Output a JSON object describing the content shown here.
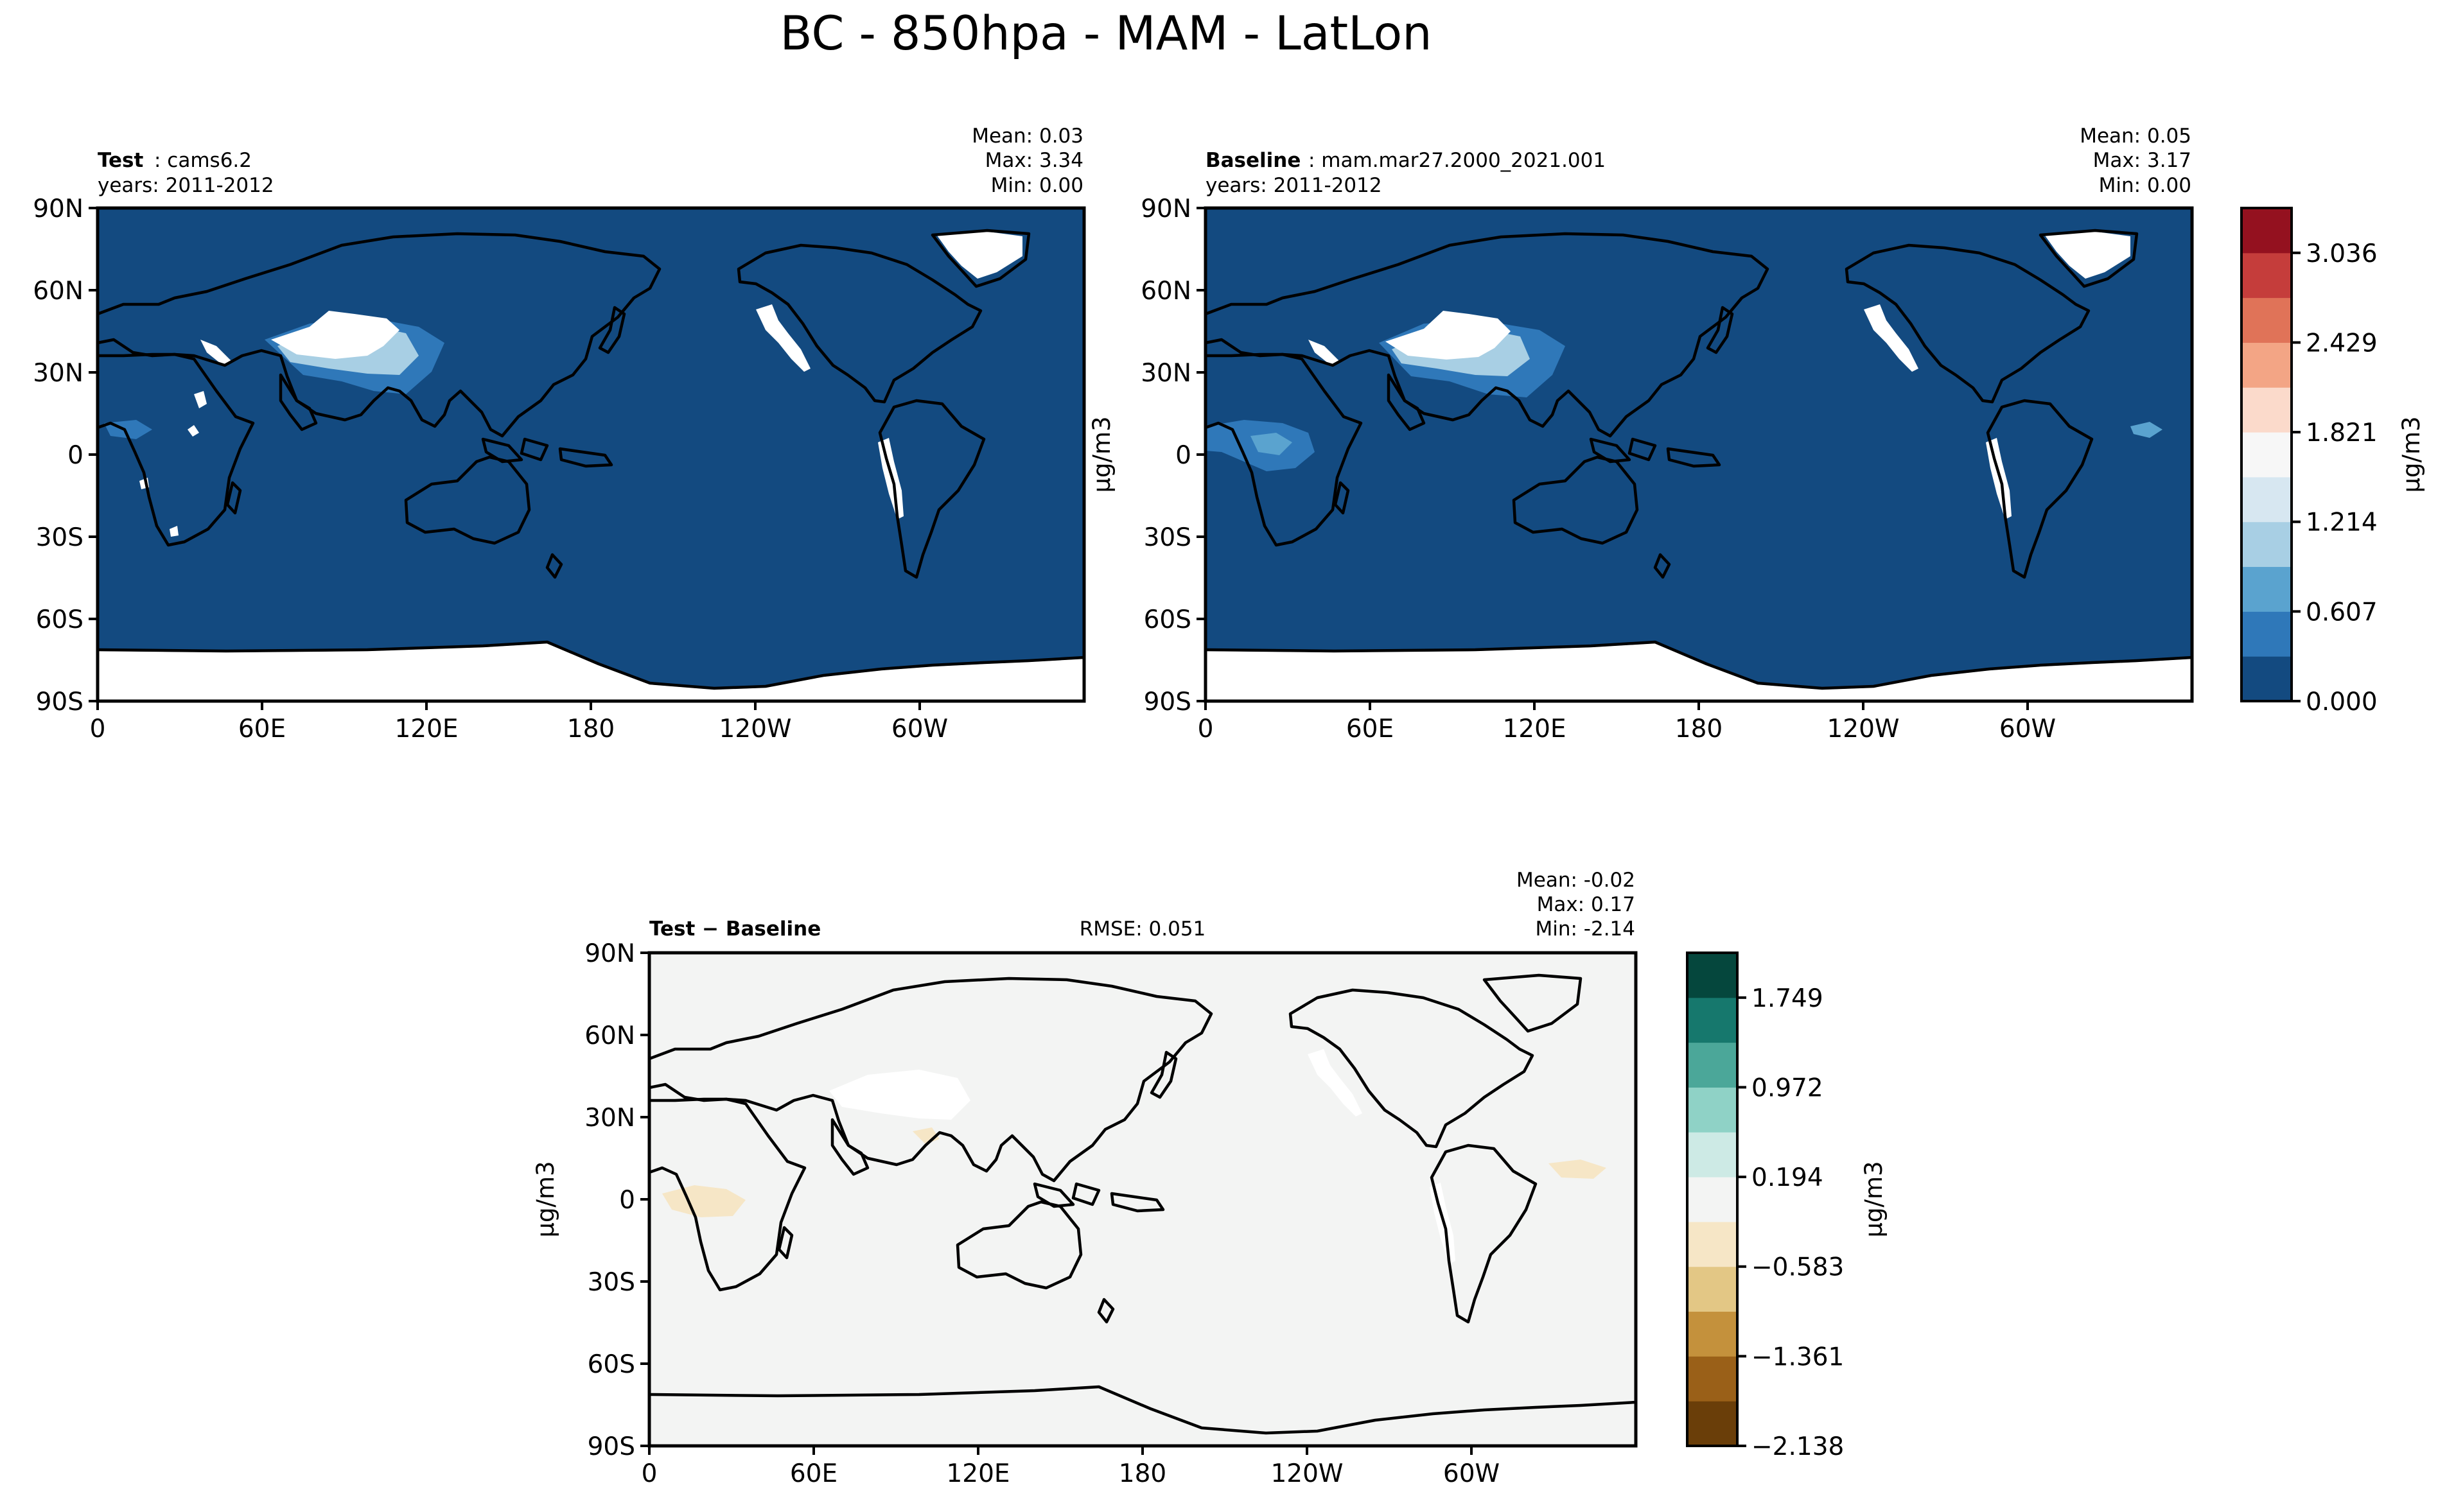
{
  "figure_title": "BC - 850hpa - MAM - LatLon",
  "units": "μg/m3",
  "lat_ticks": [
    "90N",
    "60N",
    "30N",
    "0",
    "30S",
    "60S",
    "90S"
  ],
  "lon_ticks": [
    "0",
    "60E",
    "120E",
    "180",
    "120W",
    "60W"
  ],
  "colors": {
    "test_base": "#134a80",
    "test_mid": "#2f78b9",
    "test_light": "#a8cfe4",
    "land_blank": "#ffffff",
    "diff_base": "#f3f4f3",
    "diff_tan": "#f6e6c6"
  },
  "panels": {
    "test": {
      "label_bold": "Test",
      "label_rest": ": cams6.2",
      "years": "years: 2011-2012",
      "stats": {
        "mean": "Mean:  0.03",
        "max": "Max:  3.34",
        "min": "Min:  0.00"
      }
    },
    "baseline": {
      "label_bold": "Baseline",
      "label_rest": ": mam.mar27.2000_2021.001",
      "years": "years: 2011-2012",
      "stats": {
        "mean": "Mean:  0.05",
        "max": "Max:  3.17",
        "min": "Min:  0.00"
      }
    },
    "diff": {
      "label_bold": "Test − Baseline",
      "rmse": "RMSE: 0.051",
      "stats": {
        "mean": "Mean: -0.02",
        "max": "Max:  0.17",
        "min": "Min: -2.14"
      }
    }
  },
  "colorbar_top": {
    "tick_labels": [
      "0.000",
      "0.607",
      "1.214",
      "1.821",
      "2.429",
      "3.036"
    ],
    "colors": [
      "#134a80",
      "#2f78b9",
      "#5aa3cf",
      "#a8cfe4",
      "#d7e7f1",
      "#f7f7f7",
      "#fbdacb",
      "#f3a585",
      "#e07358",
      "#c53d3b",
      "#94111f"
    ]
  },
  "colorbar_bottom": {
    "tick_labels": [
      "−2.138",
      "−1.361",
      "−0.583",
      "0.194",
      "0.972",
      "1.749"
    ],
    "colors": [
      "#6a3e09",
      "#9a6018",
      "#c4913c",
      "#e3c785",
      "#f6e6c6",
      "#f3f4f3",
      "#cdeae5",
      "#8fd2c6",
      "#4ba799",
      "#16786d",
      "#05473d"
    ]
  },
  "chart_data": [
    {
      "type": "heatmap",
      "title": "Test: cams6.2",
      "subtitle": "years: 2011-2012",
      "projection": "latlon",
      "lon_ticks": [
        "0",
        "60E",
        "120E",
        "180",
        "120W",
        "60W"
      ],
      "lat_ticks": [
        "90N",
        "60N",
        "30N",
        "0",
        "30S",
        "60S",
        "90S"
      ],
      "colorbar_label": "μg/m3",
      "levels": [
        0.0,
        0.3035,
        0.607,
        0.9105,
        1.214,
        1.5175,
        1.821,
        2.1245,
        2.429,
        2.7325,
        3.036,
        3.34
      ],
      "mean": 0.03,
      "max": 3.34,
      "min": 0.0
    },
    {
      "type": "heatmap",
      "title": "Baseline: mam.mar27.2000_2021.001",
      "subtitle": "years: 2011-2012",
      "projection": "latlon",
      "lon_ticks": [
        "0",
        "60E",
        "120E",
        "180",
        "120W",
        "60W"
      ],
      "lat_ticks": [
        "90N",
        "60N",
        "30N",
        "0",
        "30S",
        "60S",
        "90S"
      ],
      "colorbar_label": "μg/m3",
      "levels": [
        0.0,
        0.3035,
        0.607,
        0.9105,
        1.214,
        1.5175,
        1.821,
        2.1245,
        2.429,
        2.7325,
        3.036,
        3.34
      ],
      "mean": 0.05,
      "max": 3.17,
      "min": 0.0
    },
    {
      "type": "heatmap",
      "title": "Test − Baseline",
      "projection": "latlon",
      "lon_ticks": [
        "0",
        "60E",
        "120E",
        "180",
        "120W",
        "60W"
      ],
      "lat_ticks": [
        "90N",
        "60N",
        "30N",
        "0",
        "30S",
        "60S",
        "90S"
      ],
      "colorbar_label": "μg/m3",
      "levels": [
        -2.138,
        -1.749,
        -1.361,
        -0.972,
        -0.583,
        -0.194,
        0.194,
        0.583,
        0.972,
        1.361,
        1.749,
        2.138
      ],
      "mean": -0.02,
      "max": 0.17,
      "min": -2.14,
      "rmse": 0.051
    }
  ]
}
